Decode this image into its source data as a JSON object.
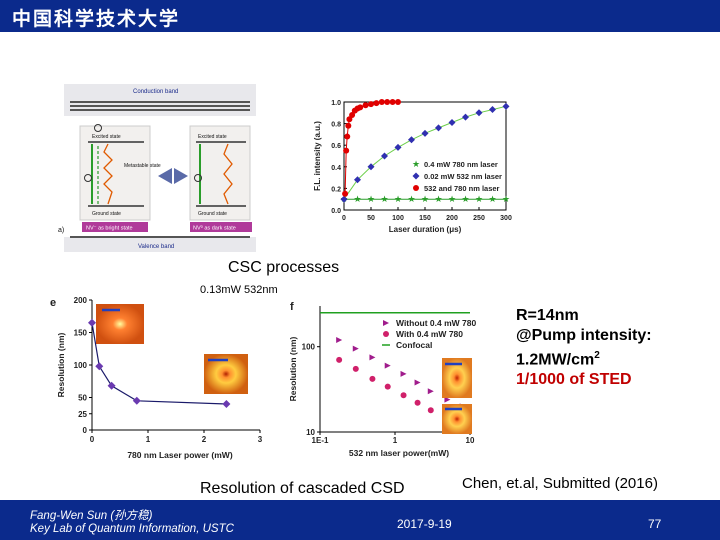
{
  "header": {
    "title": "中国科学技术大学"
  },
  "footer": {
    "author_line1": "Fang-Wen Sun (孙方稳)",
    "author_line2": "Key Lab of Quantum Information, USTC",
    "date": "2017-9-19",
    "page_number": "77"
  },
  "colors": {
    "brand_blue": "#0b2a8c",
    "note_red": "#c00000"
  },
  "captions": {
    "csc_processes": "CSC processes",
    "power_label": "0.13mW 532nm",
    "resolution_caption": "Resolution of cascaded CSD",
    "citation": "Chen, et.al, Submitted (2016)"
  },
  "side_note": {
    "line1": "R=14nm",
    "line2": "@Pump intensity:",
    "line3_main": "1.2MW/cm",
    "line3_sup": "2",
    "line4": "1/1000 of STED"
  },
  "energy_diagram": {
    "conduction_band": "Conduction band",
    "valence_band": "Valence band",
    "excited_state": "Excited state",
    "ground_state": "Ground state",
    "metastable_state": "Metastable state",
    "nv_minus": "NV⁻ as bright state",
    "nv_zero": "NV⁰ as dark state",
    "panel_label": "a)"
  },
  "chart_data": [
    {
      "type": "scatter",
      "panel": "top-right",
      "xlabel": "Laser duration (μs)",
      "ylabel": "F.L. intensity (a.u.)",
      "xlim": [
        0,
        300
      ],
      "ylim": [
        0.0,
        1.0
      ],
      "xticks": [
        "0",
        "50",
        "100",
        "150",
        "200",
        "250",
        "300"
      ],
      "yticks": [
        "0.0",
        "0.2",
        "0.4",
        "0.6",
        "0.8",
        "1.0"
      ],
      "legend_placement": "bottom-right",
      "series": [
        {
          "name": "0.4 mW 780 nm laser",
          "color": "#2a9d2a",
          "marker": "star",
          "points": [
            [
              0,
              0.1
            ],
            [
              25,
              0.1
            ],
            [
              50,
              0.1
            ],
            [
              75,
              0.1
            ],
            [
              100,
              0.1
            ],
            [
              125,
              0.1
            ],
            [
              150,
              0.1
            ],
            [
              175,
              0.1
            ],
            [
              200,
              0.1
            ],
            [
              225,
              0.1
            ],
            [
              250,
              0.1
            ],
            [
              275,
              0.1
            ],
            [
              300,
              0.1
            ]
          ]
        },
        {
          "name": "0.02 mW 532 nm laser",
          "color": "#3030b0",
          "marker": "diamond",
          "points": [
            [
              0,
              0.1
            ],
            [
              25,
              0.28
            ],
            [
              50,
              0.4
            ],
            [
              75,
              0.5
            ],
            [
              100,
              0.58
            ],
            [
              125,
              0.65
            ],
            [
              150,
              0.71
            ],
            [
              175,
              0.76
            ],
            [
              200,
              0.81
            ],
            [
              225,
              0.86
            ],
            [
              250,
              0.9
            ],
            [
              275,
              0.93
            ],
            [
              300,
              0.96
            ]
          ]
        },
        {
          "name": "532 and 780 nm laser",
          "color": "#e00000",
          "marker": "circle",
          "points": [
            [
              2,
              0.15
            ],
            [
              4,
              0.55
            ],
            [
              6,
              0.68
            ],
            [
              8,
              0.78
            ],
            [
              10,
              0.84
            ],
            [
              15,
              0.88
            ],
            [
              20,
              0.92
            ],
            [
              25,
              0.94
            ],
            [
              30,
              0.95
            ],
            [
              40,
              0.97
            ],
            [
              50,
              0.98
            ],
            [
              60,
              0.99
            ],
            [
              70,
              1.0
            ],
            [
              80,
              1.0
            ],
            [
              90,
              1.0
            ],
            [
              100,
              1.0
            ]
          ]
        }
      ]
    },
    {
      "type": "line",
      "panel": "e",
      "xlabel": "780 nm Laser power (mW)",
      "ylabel": "Resolution (nm)",
      "xlim": [
        0,
        3
      ],
      "ylim": [
        0,
        200
      ],
      "xticks": [
        "0",
        "1",
        "2",
        "3"
      ],
      "yticks": [
        "0",
        "25",
        "50",
        "100",
        "150",
        "200"
      ],
      "series": [
        {
          "name": "",
          "color": "#3030b0",
          "points": [
            [
              0,
              165
            ],
            [
              0.13,
              98
            ],
            [
              0.35,
              68
            ],
            [
              0.8,
              45
            ],
            [
              2.4,
              40
            ]
          ]
        }
      ]
    },
    {
      "type": "scatter",
      "panel": "f",
      "xlabel": "532 nm laser power(mW)",
      "ylabel": "Resolution (nm)",
      "xscale": "log",
      "yscale": "log",
      "xlim": [
        0.1,
        10
      ],
      "ylim": [
        10,
        300
      ],
      "xticks": [
        "1E-1",
        "1",
        "10"
      ],
      "yticks": [
        "10",
        "100"
      ],
      "legend_placement": "top-right",
      "series": [
        {
          "name": "Without 0.4 mW 780",
          "color": "#a01c8c",
          "marker": "triangle",
          "points": [
            [
              0.18,
              120
            ],
            [
              0.3,
              95
            ],
            [
              0.5,
              75
            ],
            [
              0.8,
              60
            ],
            [
              1.3,
              48
            ],
            [
              2,
              38
            ],
            [
              3,
              30
            ],
            [
              5,
              24
            ],
            [
              8,
              20
            ]
          ]
        },
        {
          "name": "With 0.4 mW 780",
          "color": "#d0206a",
          "marker": "circle",
          "points": [
            [
              0.18,
              70
            ],
            [
              0.3,
              55
            ],
            [
              0.5,
              42
            ],
            [
              0.8,
              34
            ],
            [
              1.3,
              27
            ],
            [
              2,
              22
            ],
            [
              3,
              18
            ],
            [
              5,
              16
            ]
          ]
        },
        {
          "name": "Confocal",
          "color": "#20a020",
          "marker": "line",
          "points": [
            [
              0.1,
              250
            ],
            [
              10,
              250
            ]
          ]
        }
      ]
    }
  ]
}
